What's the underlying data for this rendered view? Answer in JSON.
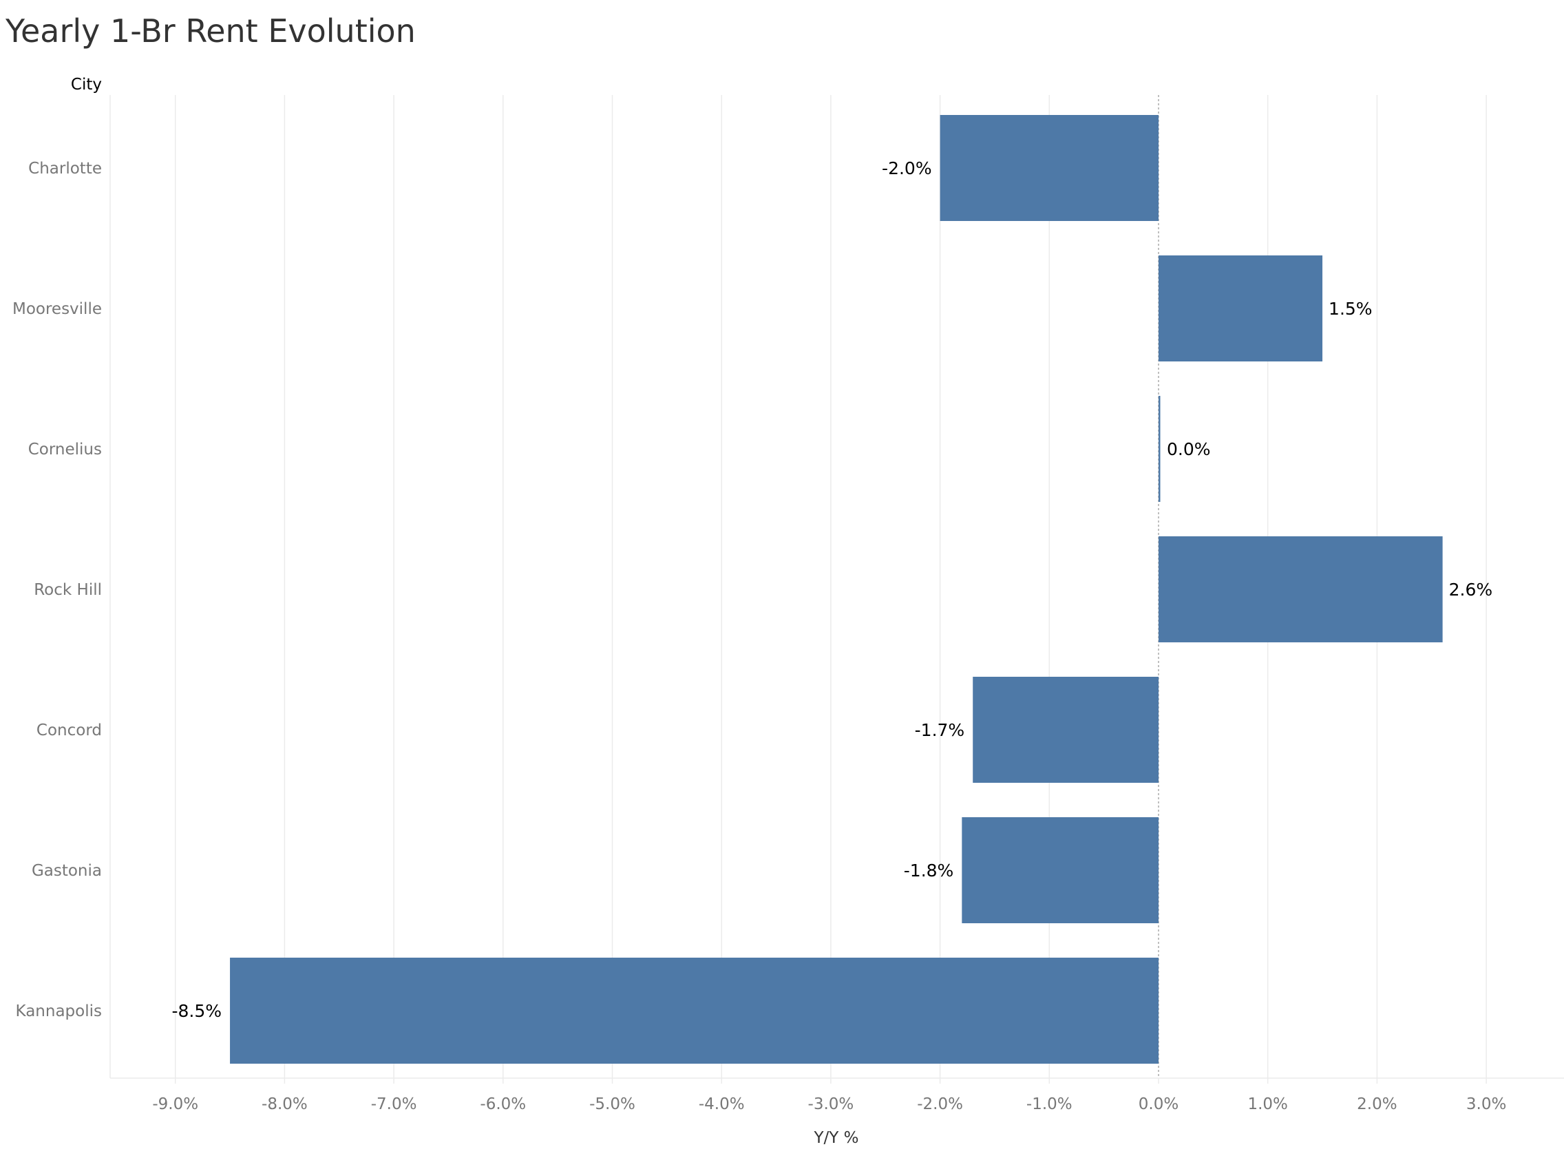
{
  "chart_data": {
    "type": "bar",
    "orientation": "horizontal",
    "title": "Yearly 1-Br Rent Evolution",
    "row_header": "City",
    "xlabel": "Y/Y %",
    "categories": [
      "Charlotte",
      "Mooresville",
      "Cornelius",
      "Rock Hill",
      "Concord",
      "Gastonia",
      "Kannapolis"
    ],
    "values": [
      -2.0,
      1.5,
      0.0,
      2.6,
      -1.7,
      -1.8,
      -8.5
    ],
    "data_labels": [
      "-2.0%",
      "1.5%",
      "0.0%",
      "2.6%",
      "-1.7%",
      "-1.8%",
      "-8.5%"
    ],
    "xlim": [
      -9.6,
      3.6
    ],
    "xticks": [
      -9,
      -8,
      -7,
      -6,
      -5,
      -4,
      -3,
      -2,
      -1,
      0,
      1,
      2,
      3
    ],
    "xtick_labels": [
      "-9.0%",
      "-8.0%",
      "-7.0%",
      "-6.0%",
      "-5.0%",
      "-4.0%",
      "-3.0%",
      "-2.0%",
      "-1.0%",
      "0.0%",
      "1.0%",
      "2.0%",
      "3.0%"
    ],
    "grid": true,
    "colors": {
      "bar": "#4e79a7",
      "grid": "#ebebeb",
      "zero_line": "#aaaaaa"
    }
  }
}
